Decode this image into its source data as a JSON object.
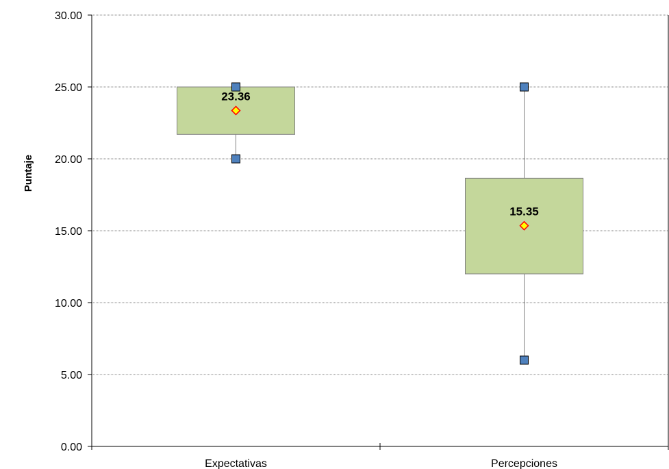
{
  "chart_data": {
    "type": "box",
    "title": "",
    "xlabel": "",
    "ylabel": "Puntaje",
    "ylim": [
      0,
      30
    ],
    "y_ticks": [
      "0.00",
      "5.00",
      "10.00",
      "15.00",
      "20.00",
      "25.00",
      "30.00"
    ],
    "grid": true,
    "legend": "none",
    "categories": [
      "Expectativas",
      "Percepciones"
    ],
    "boxes": [
      {
        "category": "Expectativas",
        "min": 20,
        "q1": 21.7,
        "median": 23.36,
        "mean": 23.36,
        "q3": 25,
        "max": 25,
        "mean_label": "23.36"
      },
      {
        "category": "Percepciones",
        "min": 6,
        "q1": 12,
        "median": 15.35,
        "mean": 15.35,
        "q3": 18.65,
        "max": 25,
        "mean_label": "15.35"
      }
    ],
    "colors": {
      "box_fill": "#c4d79b",
      "box_stroke": "#7f7f7f",
      "whisker": "#7f7f7f",
      "extreme_marker_fill": "#4f81bd",
      "extreme_marker_stroke": "#000000",
      "mean_marker_fill": "#ffff00",
      "mean_marker_stroke": "#ff0000",
      "grid": "#808080"
    }
  }
}
